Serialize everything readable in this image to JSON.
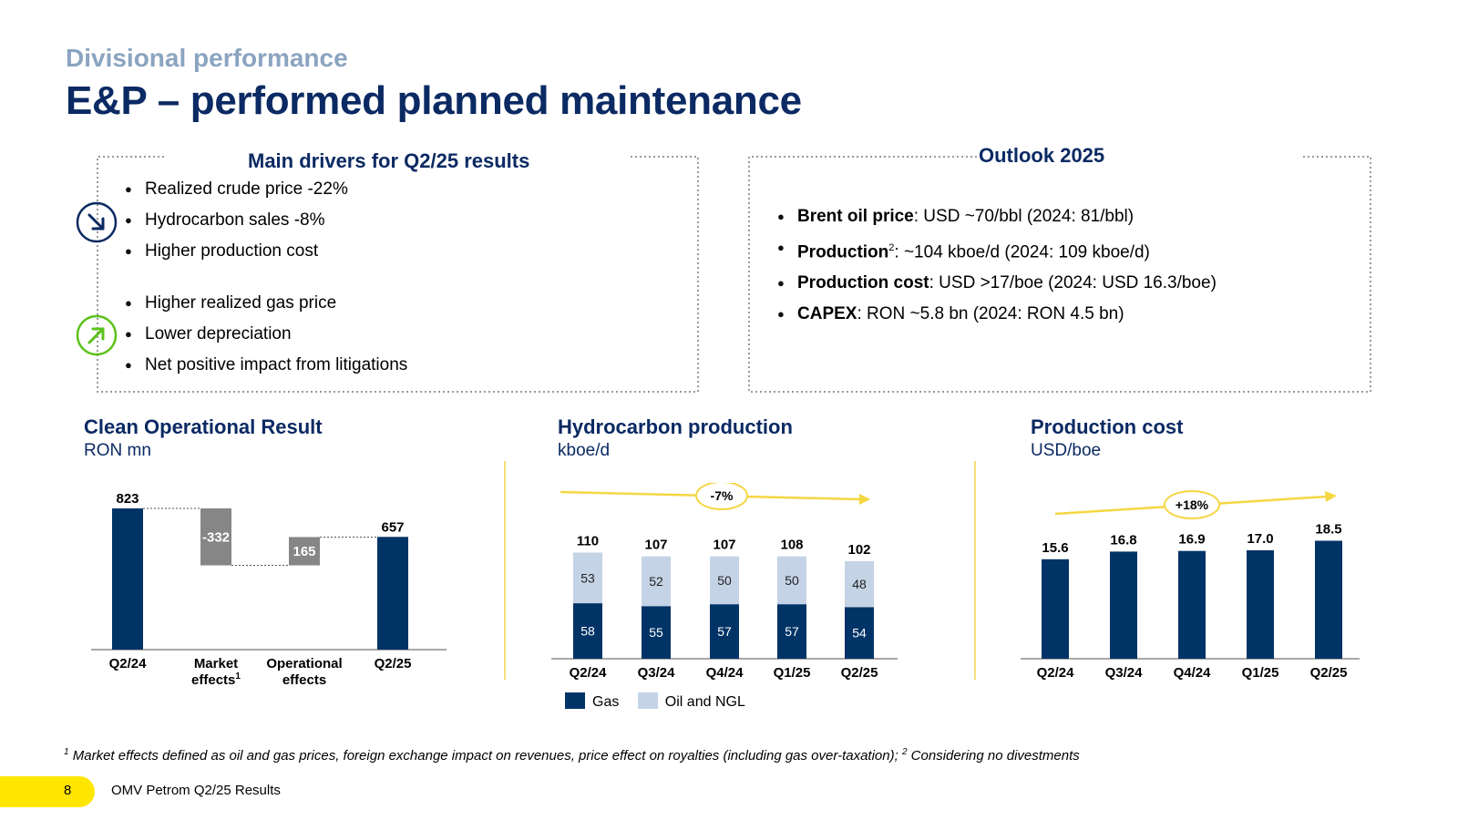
{
  "header": {
    "subtitle": "Divisional performance",
    "title": "E&P – performed planned maintenance"
  },
  "drivers": {
    "title": "Main drivers for Q2/25 results",
    "negative": [
      "Realized crude price -22%",
      "Hydrocarbon sales -8%",
      "Higher production cost"
    ],
    "positive": [
      "Higher realized gas price",
      "Lower depreciation",
      "Net positive impact from litigations"
    ]
  },
  "outlook": {
    "title": "Outlook 2025",
    "items": [
      {
        "label": "Brent oil price",
        "sup": "",
        "text": ": USD ~70/bbl (2024: 81/bbl)"
      },
      {
        "label": "Production",
        "sup": "2",
        "text": ": ~104 kboe/d (2024: 109 kboe/d)"
      },
      {
        "label": "Production cost",
        "sup": "",
        "text": ": USD >17/boe (2024: USD 16.3/boe)"
      },
      {
        "label": "CAPEX",
        "sup": "",
        "text": ": RON ~5.8 bn (2024: RON 4.5 bn)"
      }
    ]
  },
  "colors": {
    "navy": "#003366",
    "light": "#c5d3e6",
    "grey": "#868686",
    "yellow": "#f5d742"
  },
  "chart_data": [
    {
      "type": "bar",
      "subtype": "waterfall",
      "title": "Clean Operational Result",
      "unit": "RON mn",
      "categories": [
        "Q2/24",
        "Market effects",
        "Operational effects",
        "Q2/25"
      ],
      "category_sup": [
        "",
        "1",
        "",
        ""
      ],
      "values": [
        823,
        -332,
        165,
        657
      ],
      "value_labels": [
        "823",
        "-332",
        "165",
        "657"
      ],
      "ylim": [
        0,
        900
      ]
    },
    {
      "type": "bar",
      "subtype": "stacked",
      "title": "Hydrocarbon production",
      "unit": "kboe/d",
      "categories": [
        "Q2/24",
        "Q3/24",
        "Q4/24",
        "Q1/25",
        "Q2/25"
      ],
      "series": [
        {
          "name": "Gas",
          "values": [
            58,
            55,
            57,
            57,
            54
          ]
        },
        {
          "name": "Oil and NGL",
          "values": [
            53,
            52,
            50,
            50,
            48
          ]
        }
      ],
      "totals": [
        110,
        107,
        107,
        108,
        102
      ],
      "trend_label": "-7%",
      "ylim": [
        0,
        125
      ]
    },
    {
      "type": "bar",
      "title": "Production cost",
      "unit": "USD/boe",
      "categories": [
        "Q2/24",
        "Q3/24",
        "Q4/24",
        "Q1/25",
        "Q2/25"
      ],
      "values": [
        15.6,
        16.8,
        16.9,
        17.0,
        18.5
      ],
      "value_labels": [
        "15.6",
        "16.8",
        "16.9",
        "17.0",
        "18.5"
      ],
      "trend_label": "+18%",
      "ylim": [
        0,
        22
      ]
    }
  ],
  "footnote": {
    "sup1": "1",
    "text1": " Market effects defined as oil and gas prices, foreign exchange impact on revenues, price effect on royalties (including gas over-taxation); ",
    "sup2": "2",
    "text2": " Considering no divestments"
  },
  "footer": {
    "page": "8",
    "text": "OMV Petrom Q2/25 Results"
  }
}
